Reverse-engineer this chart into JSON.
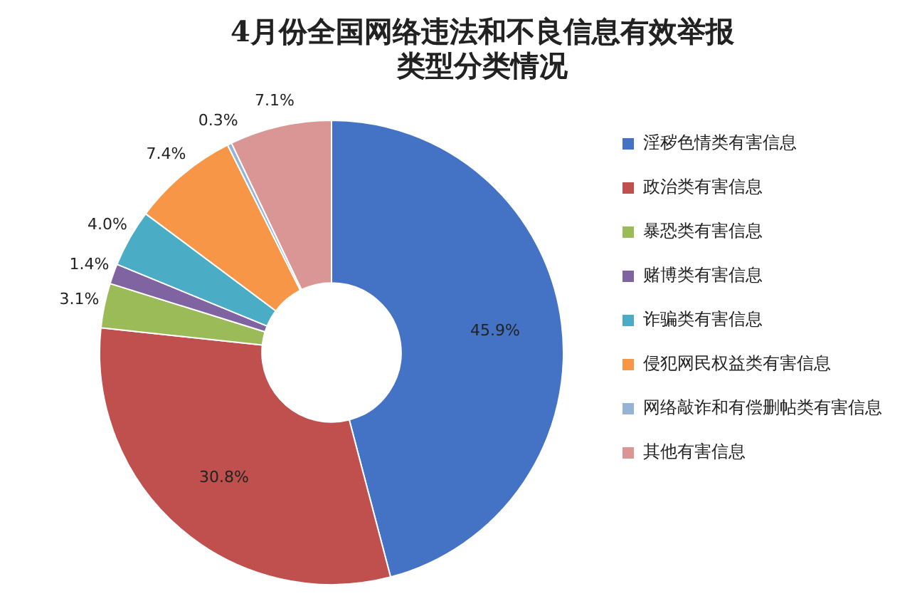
{
  "chart_data": {
    "type": "donut",
    "title": "4月份全国网络违法和不良信息有效举报类型分类情况",
    "categories": [
      "淫秽色情类有害信息",
      "政治类有害信息",
      "暴恐类有害信息",
      "赌博类有害信息",
      "诈骗类有害信息",
      "侵犯网民权益类有害信息",
      "网络敲诈和有偿删帖类有害信息",
      "其他有害信息"
    ],
    "values": [
      45.9,
      30.8,
      3.1,
      1.4,
      4.0,
      7.4,
      0.3,
      7.1
    ],
    "value_labels": [
      "45.9%",
      "30.8%",
      "3.1%",
      "1.4%",
      "4.0%",
      "7.4%",
      "0.3%",
      "7.1%"
    ],
    "colors": [
      "#4472c4",
      "#c0504d",
      "#9bbb59",
      "#8064a2",
      "#4bacc6",
      "#f79646",
      "#95b3d7",
      "#d99694"
    ],
    "legend": "right"
  }
}
